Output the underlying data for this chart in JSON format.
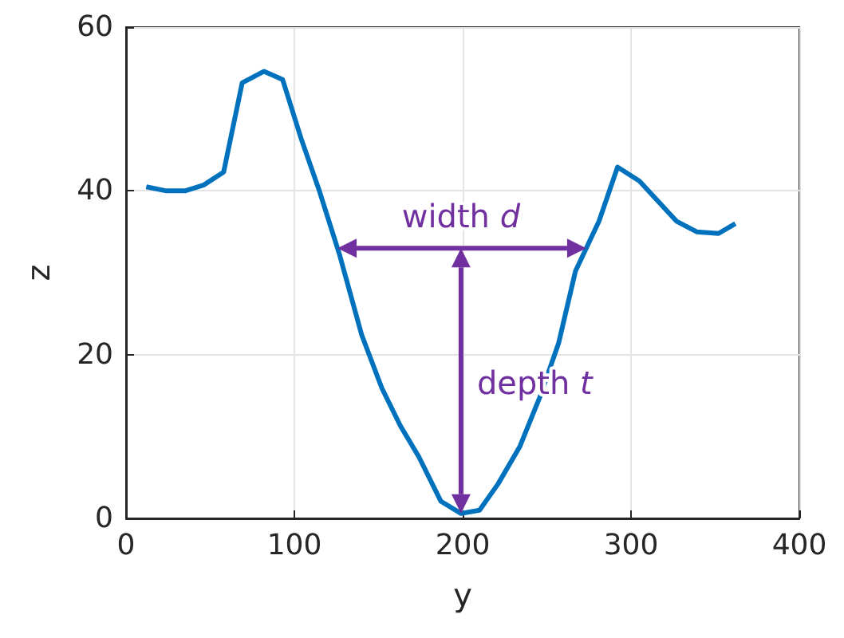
{
  "chart_data": {
    "type": "line",
    "xlabel": "y",
    "ylabel": "z",
    "x": [
      12,
      24,
      35,
      46,
      58,
      69,
      82,
      93,
      104,
      115,
      127,
      140,
      152,
      163,
      174,
      187,
      199,
      210,
      221,
      234,
      246,
      257,
      267,
      281,
      292,
      305,
      327,
      339,
      352,
      362
    ],
    "series": [
      {
        "color": "#0072bd",
        "values": [
          40.5,
          40,
          40,
          40.7,
          42.3,
          53.2,
          54.6,
          53.6,
          46.4,
          39.9,
          32.1,
          22.4,
          15.9,
          11.3,
          7.5,
          2.1,
          0.6,
          1.0,
          4.2,
          8.8,
          14.9,
          21.4,
          30.2,
          36.3,
          42.9,
          41.2,
          36.3,
          35,
          34.8,
          36
        ]
      }
    ],
    "xlim": [
      0,
      400
    ],
    "xticks": [
      0,
      100,
      200,
      300,
      400
    ],
    "ylim": [
      0,
      60
    ],
    "yticks": [
      0,
      20,
      40,
      60
    ],
    "grid": true,
    "marker": "none",
    "line_style": "solid",
    "annotations": [
      "width d",
      "depth t"
    ]
  }
}
